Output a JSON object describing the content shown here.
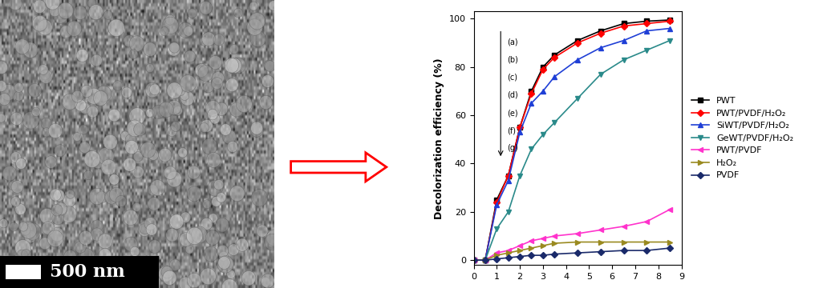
{
  "chart_data": {
    "type": "line",
    "y_label": "Decolorization efficiency (%)",
    "annotations": [
      "(a)",
      "(b)",
      "(c)",
      "(d)",
      "(e)",
      "(f)",
      "(g)"
    ],
    "x": [
      0,
      0.5,
      1,
      1.5,
      2,
      2.5,
      3,
      3.5,
      4.5,
      5.5,
      6.5,
      7.5,
      8.5
    ],
    "xlim": [
      0,
      9
    ],
    "xticks": [
      0,
      1,
      2,
      3,
      4,
      5,
      6,
      7,
      8,
      9
    ],
    "ylim": [
      -2,
      103
    ],
    "yticks": [
      0,
      20,
      40,
      60,
      80,
      100
    ],
    "legend": "right",
    "series": [
      {
        "name": "PWT",
        "color": "#000000",
        "marker": "square",
        "values": [
          0,
          0,
          25,
          35,
          55,
          70,
          80,
          85,
          91,
          95,
          98,
          99,
          99.5
        ]
      },
      {
        "name": "PWT/PVDF/H₂O₂",
        "color": "#ff0000",
        "marker": "diamond",
        "values": [
          0,
          0,
          24,
          35,
          55,
          69,
          79,
          84,
          90,
          94,
          97,
          98,
          99
        ]
      },
      {
        "name": "SiWT/PVDF/H₂O₂",
        "color": "#1f3fd6",
        "marker": "triangle_up",
        "values": [
          0,
          0,
          23,
          33,
          53,
          65,
          70,
          76,
          83,
          88,
          91,
          95,
          96
        ]
      },
      {
        "name": "GeWT/PVDF/H₂O₂",
        "color": "#2a8a8a",
        "marker": "triangle_down",
        "values": [
          0,
          0,
          13,
          20,
          35,
          46,
          52,
          57,
          67,
          77,
          83,
          87,
          91
        ]
      },
      {
        "name": "PWT/PVDF",
        "color": "#ff33cc",
        "marker": "triangle_left",
        "values": [
          0,
          0,
          3,
          4,
          6,
          8,
          9,
          10,
          11,
          12.5,
          14,
          16,
          21
        ]
      },
      {
        "name": "H₂O₂",
        "color": "#9a8a20",
        "marker": "triangle_right",
        "values": [
          0,
          0,
          2,
          3,
          4,
          5,
          6,
          7,
          7.5,
          7.5,
          7.5,
          7.5,
          7.5
        ]
      },
      {
        "name": "PVDF",
        "color": "#1a2a6a",
        "marker": "diamond",
        "values": [
          0,
          0,
          0.5,
          1,
          1.5,
          2,
          2,
          2.5,
          3,
          3.5,
          4,
          4,
          5
        ]
      }
    ]
  },
  "image": {
    "scale_bar": "500 nm"
  }
}
